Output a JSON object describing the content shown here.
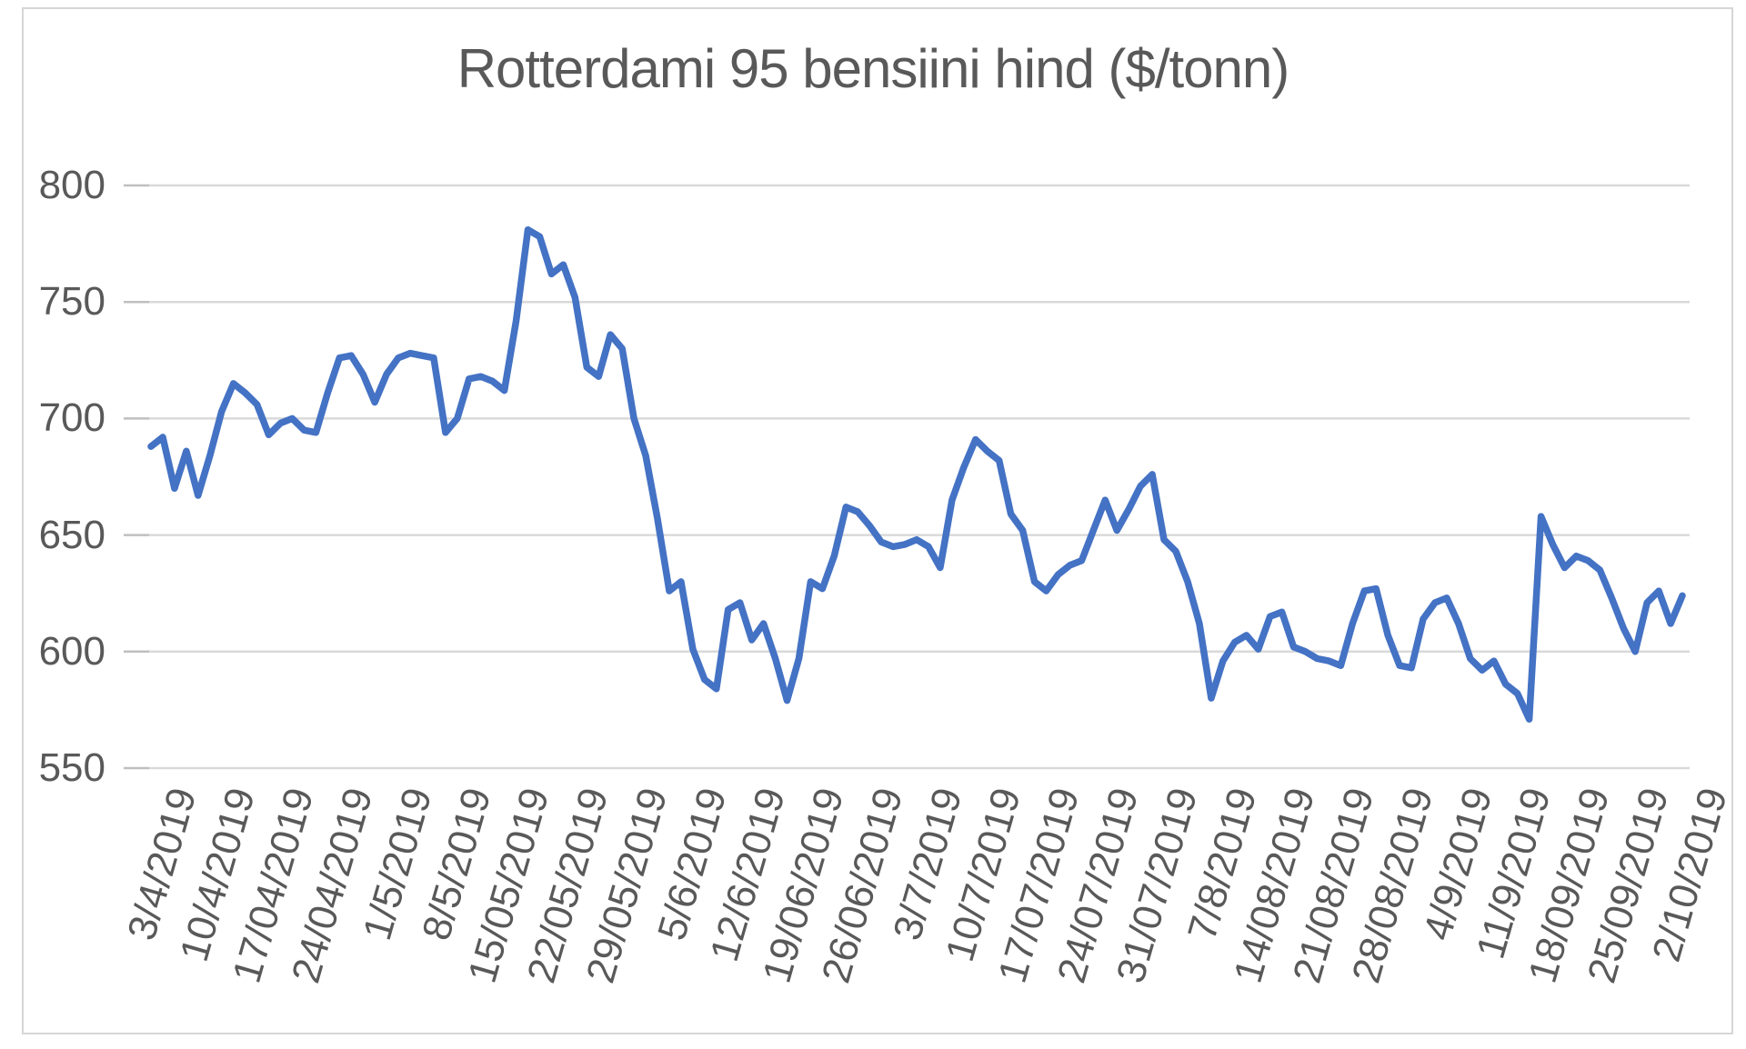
{
  "chart": {
    "title": "Rotterdami 95 bensiini hind ($/tonn)",
    "colors": {
      "line": "#4472C4",
      "gridline": "#D9D9D9",
      "tick_stub": "#BFBFBF",
      "text": "#595959",
      "frame_border": "#D6D6D6",
      "background": "#FFFFFF"
    }
  },
  "chart_data": {
    "type": "line",
    "title": "Rotterdami 95 bensiini hind ($/tonn)",
    "xlabel": "",
    "ylabel": "",
    "ylim": [
      550,
      800
    ],
    "yticks": [
      800,
      750,
      700,
      650,
      600,
      550
    ],
    "grid": true,
    "legend": false,
    "x_tick_labels": [
      "3/4/2019",
      "10/4/2019",
      "17/04/2019",
      "24/04/2019",
      "1/5/2019",
      "8/5/2019",
      "15/05/2019",
      "22/05/2019",
      "29/05/2019",
      "5/6/2019",
      "12/6/2019",
      "19/06/2019",
      "26/06/2019",
      "3/7/2019",
      "10/7/2019",
      "17/07/2019",
      "24/07/2019",
      "31/07/2019",
      "7/8/2019",
      "14/08/2019",
      "21/08/2019",
      "28/08/2019",
      "4/9/2019",
      "11/9/2019",
      "18/09/2019",
      "25/09/2019",
      "2/10/2019"
    ],
    "x_label_every_n_points": 5,
    "series": [
      {
        "name": "Rotterdami 95 bensiini hind ($/tonn)",
        "values": [
          688,
          692,
          670,
          686,
          667,
          684,
          703,
          715,
          711,
          706,
          693,
          698,
          700,
          695,
          694,
          711,
          726,
          727,
          719,
          707,
          719,
          726,
          728,
          727,
          726,
          694,
          700,
          717,
          718,
          716,
          712,
          742,
          781,
          778,
          762,
          766,
          752,
          722,
          718,
          736,
          730,
          700,
          684,
          657,
          626,
          630,
          601,
          588,
          584,
          618,
          621,
          605,
          612,
          597,
          579,
          597,
          630,
          627,
          641,
          662,
          660,
          654,
          647,
          645,
          646,
          648,
          645,
          636,
          665,
          679,
          691,
          686,
          682,
          659,
          652,
          630,
          626,
          633,
          637,
          639,
          652,
          665,
          652,
          661,
          671,
          676,
          648,
          643,
          630,
          612,
          580,
          596,
          604,
          607,
          601,
          615,
          617,
          602,
          600,
          597,
          596,
          594,
          612,
          626,
          627,
          607,
          594,
          593,
          614,
          621,
          623,
          612,
          597,
          592,
          596,
          586,
          582,
          571,
          658,
          646,
          636,
          641,
          639,
          635,
          623,
          610,
          600,
          621,
          626,
          612,
          624
        ]
      }
    ]
  }
}
